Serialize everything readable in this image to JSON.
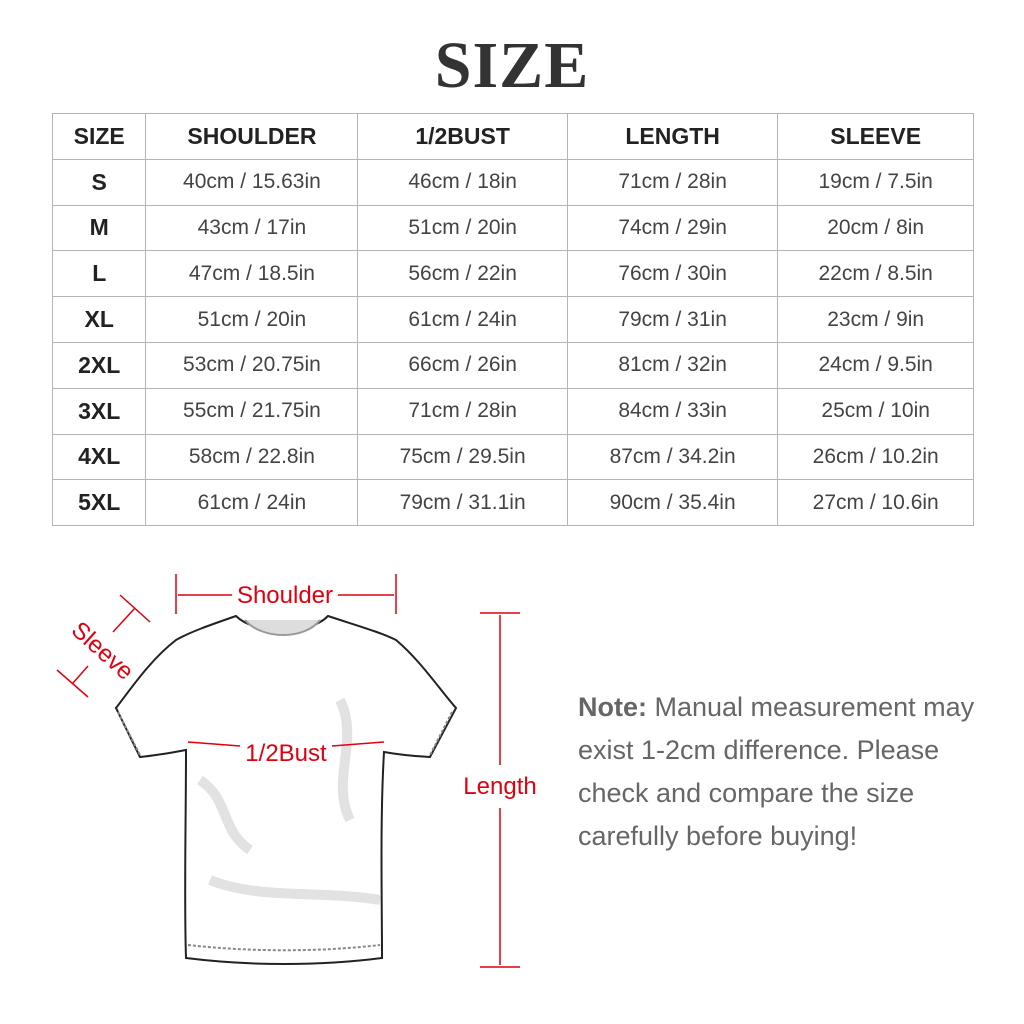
{
  "title": "SIZE",
  "table": {
    "headers": [
      "SIZE",
      "SHOULDER",
      "1/2BUST",
      "LENGTH",
      "SLEEVE"
    ],
    "rows": [
      [
        "S",
        "40cm / 15.63in",
        "46cm / 18in",
        "71cm / 28in",
        "19cm / 7.5in"
      ],
      [
        "M",
        "43cm / 17in",
        "51cm / 20in",
        "74cm / 29in",
        "20cm / 8in"
      ],
      [
        "L",
        "47cm / 18.5in",
        "56cm / 22in",
        "76cm / 30in",
        "22cm / 8.5in"
      ],
      [
        "XL",
        "51cm / 20in",
        "61cm / 24in",
        "79cm / 31in",
        "23cm / 9in"
      ],
      [
        "2XL",
        "53cm / 20.75in",
        "66cm / 26in",
        "81cm / 32in",
        "24cm / 9.5in"
      ],
      [
        "3XL",
        "55cm / 21.75in",
        "71cm / 28in",
        "84cm / 33in",
        "25cm / 10in"
      ],
      [
        "4XL",
        "58cm / 22.8in",
        "75cm / 29.5in",
        "87cm / 34.2in",
        "26cm / 10.2in"
      ],
      [
        "5XL",
        "61cm / 24in",
        "79cm / 31.1in",
        "90cm / 35.4in",
        "27cm / 10.6in"
      ]
    ]
  },
  "diagram": {
    "labels": {
      "shoulder": "Shoulder",
      "sleeve": "Sleeve",
      "bust": "1/2Bust",
      "length": "Length"
    },
    "accent_color": "#e0000f"
  },
  "note": {
    "label": "Note:",
    "text": " Manual measurement may exist 1-2cm difference. Please check and compare the size carefully before buying!"
  }
}
